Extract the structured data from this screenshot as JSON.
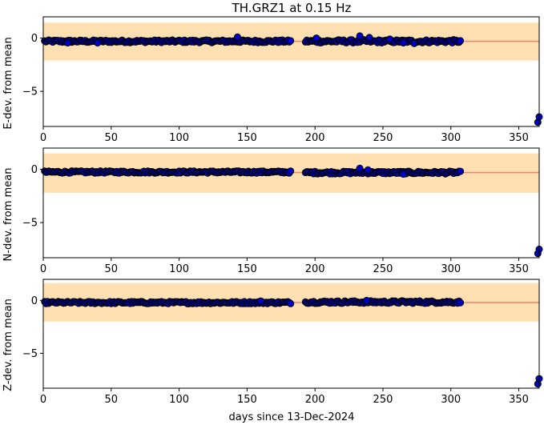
{
  "title": "TH.GRZ1 at 0.15 Hz",
  "xlabel": "days since 13-Dec-2024",
  "colors": {
    "band": "#ffe0b2",
    "mean_line": "#f08070",
    "marker_fill": "#0000cc",
    "marker_edge": "#000000"
  },
  "chart_data": [
    {
      "type": "scatter",
      "name": "east",
      "ylabel": "E-dev. from mean",
      "xlim": [
        0,
        365
      ],
      "ylim": [
        -8.3,
        2.0
      ],
      "xticks": [
        "0",
        "50",
        "100",
        "150",
        "200",
        "250",
        "300",
        "350"
      ],
      "xtick_values": [
        0,
        50,
        100,
        150,
        200,
        250,
        300,
        350
      ],
      "yticks": [
        "0",
        "−5"
      ],
      "ytick_values": [
        0,
        -5
      ],
      "band": [
        -2.1,
        1.45
      ],
      "mean_line": -0.3,
      "segments": [
        {
          "x_start": 1,
          "x_end": 182,
          "base": -0.3,
          "jitter": 0.12
        },
        {
          "x_start": 193,
          "x_end": 307,
          "base": -0.3,
          "jitter": 0.15
        }
      ],
      "points": [
        [
          143,
          0.1
        ],
        [
          201,
          0.0
        ],
        [
          233,
          0.2
        ],
        [
          240,
          0.05
        ],
        [
          255,
          -0.1
        ],
        [
          265,
          -0.45
        ],
        [
          273,
          -0.5
        ],
        [
          18,
          -0.45
        ],
        [
          40,
          -0.45
        ],
        [
          364,
          -7.9
        ],
        [
          365,
          -7.4
        ]
      ]
    },
    {
      "type": "scatter",
      "name": "north",
      "ylabel": "N-dev. from mean",
      "xlim": [
        0,
        365
      ],
      "ylim": [
        -8.3,
        2.0
      ],
      "xticks": [
        "0",
        "50",
        "100",
        "150",
        "200",
        "250",
        "300",
        "350"
      ],
      "xtick_values": [
        0,
        50,
        100,
        150,
        200,
        250,
        300,
        350
      ],
      "yticks": [
        "0",
        "−5"
      ],
      "ytick_values": [
        0,
        -5
      ],
      "band": [
        -2.2,
        1.5
      ],
      "mean_line": -0.3,
      "segments": [
        {
          "x_start": 1,
          "x_end": 182,
          "base": -0.25,
          "jitter": 0.1
        },
        {
          "x_start": 193,
          "x_end": 307,
          "base": -0.3,
          "jitter": 0.12
        }
      ],
      "points": [
        [
          233,
          0.1
        ],
        [
          239,
          -0.05
        ],
        [
          265,
          -0.45
        ],
        [
          364,
          -7.9
        ],
        [
          365,
          -7.5
        ]
      ]
    },
    {
      "type": "scatter",
      "name": "vertical",
      "ylabel": "Z-dev. from mean",
      "xlim": [
        0,
        365
      ],
      "ylim": [
        -8.3,
        2.0
      ],
      "xticks": [
        "0",
        "50",
        "100",
        "150",
        "200",
        "250",
        "300",
        "350"
      ],
      "xtick_values": [
        0,
        50,
        100,
        150,
        200,
        250,
        300,
        350
      ],
      "yticks": [
        "0",
        "−5"
      ],
      "ytick_values": [
        0,
        -5
      ],
      "band": [
        -2.0,
        1.65
      ],
      "mean_line": -0.2,
      "segments": [
        {
          "x_start": 1,
          "x_end": 182,
          "base": -0.2,
          "jitter": 0.1
        },
        {
          "x_start": 193,
          "x_end": 307,
          "base": -0.15,
          "jitter": 0.12
        }
      ],
      "points": [
        [
          160,
          -0.05
        ],
        [
          238,
          0.0
        ],
        [
          364,
          -7.9
        ],
        [
          365,
          -7.4
        ]
      ]
    }
  ]
}
